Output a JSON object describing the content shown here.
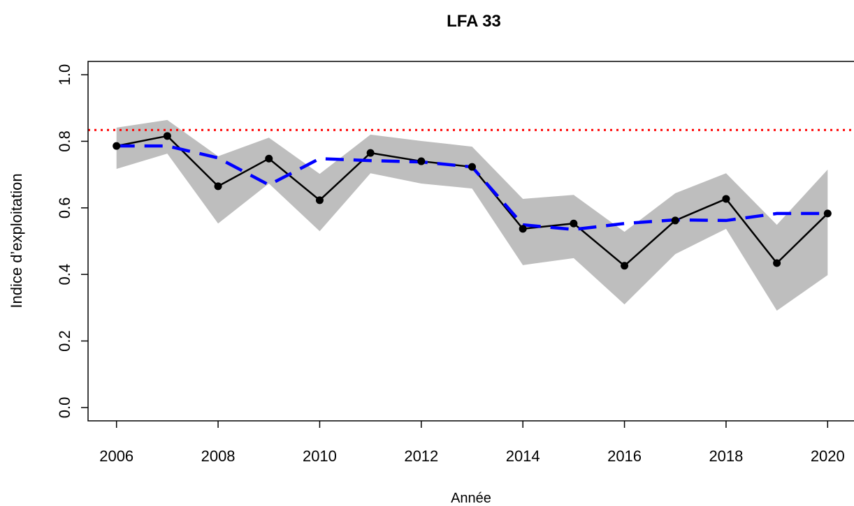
{
  "chart_data": {
    "type": "line",
    "title": "LFA 33",
    "xlabel": "Année",
    "ylabel": "Indice d’exploitation",
    "x": [
      2006,
      2007,
      2008,
      2009,
      2010,
      2011,
      2012,
      2013,
      2014,
      2015,
      2016,
      2017,
      2018,
      2019,
      2020
    ],
    "values": [
      0.786,
      0.816,
      0.665,
      0.748,
      0.623,
      0.765,
      0.74,
      0.723,
      0.537,
      0.553,
      0.426,
      0.562,
      0.627,
      0.434,
      0.583
    ],
    "color": "#000000",
    "lower": [
      0.717,
      0.763,
      0.553,
      0.673,
      0.53,
      0.704,
      0.673,
      0.658,
      0.428,
      0.449,
      0.31,
      0.461,
      0.537,
      0.291,
      0.398
    ],
    "upper": [
      0.841,
      0.864,
      0.755,
      0.811,
      0.702,
      0.82,
      0.801,
      0.784,
      0.627,
      0.639,
      0.528,
      0.644,
      0.704,
      0.549,
      0.715
    ],
    "band_color": "#bebebe",
    "trend": {
      "values": [
        0.786,
        0.786,
        0.75,
        0.669,
        0.748,
        0.742,
        0.738,
        0.723,
        0.549,
        0.535,
        0.553,
        0.564,
        0.562,
        0.583,
        0.583
      ],
      "color": "#0000ff"
    },
    "reference_line": {
      "value": 0.834,
      "color": "#ff0000"
    },
    "xlim": [
      2005.44,
      2020.56
    ],
    "ylim": [
      -0.04,
      1.04
    ],
    "xticks": [
      2006,
      2008,
      2010,
      2012,
      2014,
      2016,
      2018,
      2020
    ],
    "yticks": [
      {
        "value": 0,
        "label": "0.0"
      },
      0.2,
      0.4,
      0.6,
      0.8,
      {
        "value": 1,
        "label": "1.0"
      }
    ]
  }
}
